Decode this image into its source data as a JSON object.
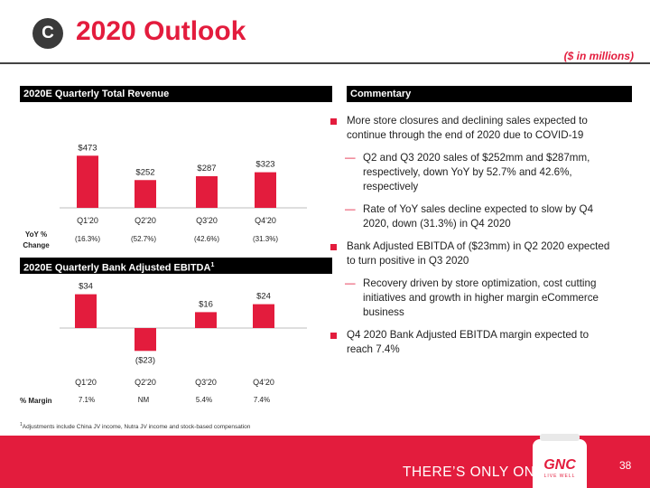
{
  "header": {
    "badge": "C",
    "title": "2020 Outlook",
    "units": "($ in millions)"
  },
  "colors": {
    "accent": "#e31c3d",
    "dark": "#3a3a3a"
  },
  "revenue_section": {
    "header": "2020E Quarterly Total Revenue",
    "row_label_line1": "YoY %",
    "row_label_line2": "Change",
    "row_values": [
      "(16.3%)",
      "(52.7%)",
      "(42.6%)",
      "(31.3%)"
    ]
  },
  "ebitda_section": {
    "header": "2020E Quarterly Bank Adjusted EBITDA",
    "header_sup": "1",
    "row_label": "% Margin",
    "row_values": [
      "7.1%",
      "NM",
      "5.4%",
      "7.4%"
    ]
  },
  "commentary": {
    "header": "Commentary",
    "b1": "More store closures and declining sales expected to continue through the end of 2020 due to COVID-19",
    "b1_s1": "Q2 and Q3 2020 sales of $252mm and $287mm, respectively, down YoY by 52.7% and 42.6%, respectively",
    "b1_s2": "Rate of YoY sales decline expected to slow by Q4 2020, down (31.3%) in Q4 2020",
    "b2": "Bank Adjusted EBITDA of ($23mm) in Q2 2020 expected to turn positive in Q3 2020",
    "b2_s1": "Recovery driven by store optimization, cost cutting initiatives and growth in higher margin eCommerce business",
    "b3": "Q4 2020 Bank Adjusted EBITDA margin expected to reach 7.4%",
    "dash": "—"
  },
  "footnote_sup": "1",
  "footnote": "Adjustments include China JV income, Nutra JV income and stock-based compensation",
  "footer": {
    "tagline": "THERE’S ONLY ONE",
    "page_number": "38",
    "brand": "GNC",
    "brand_sub": "LIVE WELL"
  },
  "chart_data": [
    {
      "type": "bar",
      "title": "2020E Quarterly Total Revenue",
      "categories": [
        "Q1'20",
        "Q2'20",
        "Q3'20",
        "Q4'20"
      ],
      "values": [
        473,
        252,
        287,
        323
      ],
      "labels": [
        "$473",
        "$252",
        "$287",
        "$323"
      ],
      "ylim": [
        0,
        500
      ]
    },
    {
      "type": "bar",
      "title": "2020E Quarterly Bank Adjusted EBITDA",
      "categories": [
        "Q1'20",
        "Q2'20",
        "Q3'20",
        "Q4'20"
      ],
      "values": [
        34,
        -23,
        16,
        24
      ],
      "labels": [
        "$34",
        "($23)",
        "$16",
        "$24"
      ],
      "ylim": [
        -30,
        40
      ]
    }
  ]
}
